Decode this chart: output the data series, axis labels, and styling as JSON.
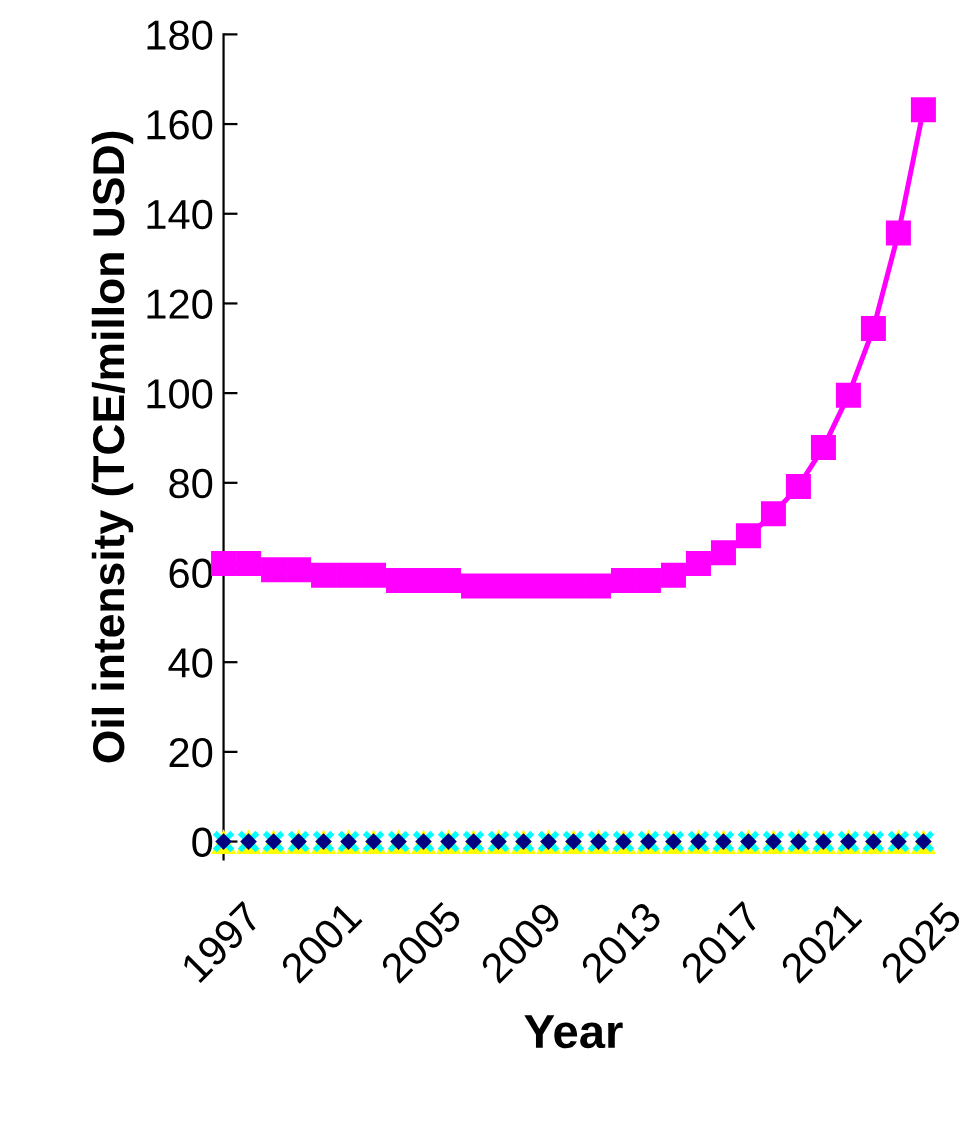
{
  "chart_data": {
    "type": "line",
    "xlabel": "Year",
    "ylabel": "Oil intensity (TCE/millon USD)",
    "x": [
      1997,
      1998,
      1999,
      2000,
      2001,
      2002,
      2003,
      2004,
      2005,
      2006,
      2007,
      2008,
      2009,
      2010,
      2011,
      2012,
      2013,
      2014,
      2015,
      2016,
      2017,
      2018,
      2019,
      2020,
      2021,
      2022,
      2023,
      2024,
      2025
    ],
    "series": [
      {
        "type": "scatter",
        "color": "#ffff00",
        "marker": "triangle",
        "values": [
          0,
          0,
          0,
          0,
          0,
          0,
          0,
          0,
          0,
          0,
          0,
          0,
          0,
          0,
          0,
          0,
          0,
          0,
          0,
          0,
          0,
          0,
          0,
          0,
          0,
          0,
          0,
          0,
          0
        ]
      },
      {
        "type": "scatter",
        "color": "#00ffff",
        "marker": "cross",
        "values": [
          0,
          0,
          0,
          0,
          0,
          0,
          0,
          0,
          0,
          0,
          0,
          0,
          0,
          0,
          0,
          0,
          0,
          0,
          0,
          0,
          0,
          0,
          0,
          0,
          0,
          0,
          0,
          0,
          0
        ]
      },
      {
        "type": "scatter",
        "color": "#000080",
        "marker": "diamond",
        "values": [
          0,
          0,
          0,
          0,
          0,
          0,
          0,
          0,
          0,
          0,
          0,
          0,
          0,
          0,
          0,
          0,
          0,
          0,
          0,
          0,
          0,
          0,
          0,
          0,
          0,
          0,
          0,
          0,
          0
        ]
      },
      {
        "color": "#ff00ff",
        "marker": "square",
        "line_style": "solid",
        "values": [
          62,
          62,
          60.6,
          60.6,
          59.4,
          59.4,
          59.4,
          58.2,
          58.2,
          58.2,
          57,
          57,
          57,
          57,
          57,
          57,
          58.2,
          58.2,
          59.4,
          62,
          64.4,
          68.2,
          73.1,
          79.2,
          87.9,
          99.5,
          114.4,
          135.7,
          163.2
        ]
      }
    ],
    "xlim": [
      1997,
      2025
    ],
    "xticks": [
      1997,
      2001,
      2005,
      2009,
      2013,
      2017,
      2021,
      2025
    ],
    "ylim": [
      -4,
      180
    ],
    "yticks": [
      0,
      20,
      40,
      60,
      80,
      100,
      120,
      140,
      160,
      180
    ],
    "grid": false,
    "legend": false
  }
}
